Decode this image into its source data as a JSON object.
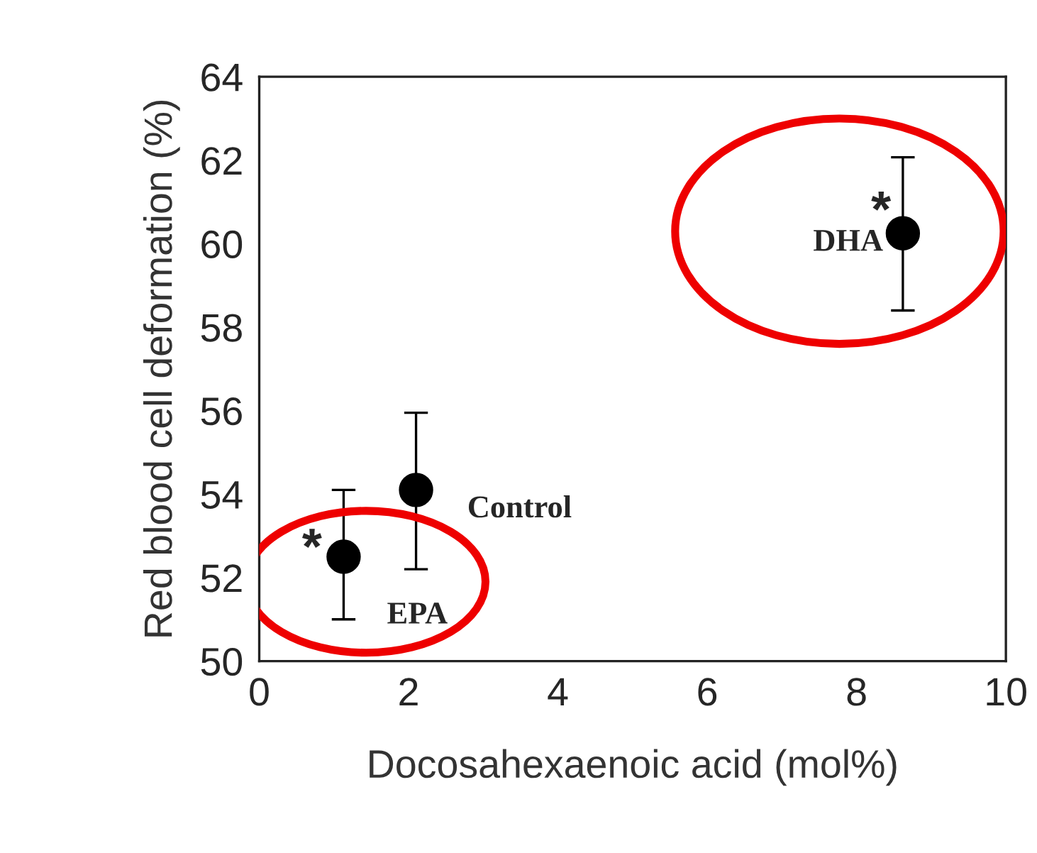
{
  "chart_data": {
    "type": "scatter",
    "xlabel": "Docosahexaenoic acid (mol%)",
    "ylabel": "Red blood cell deformation (%)",
    "x": [
      1.13,
      2.1,
      8.62
    ],
    "values": [
      52.5,
      54.1,
      60.25
    ],
    "errors": [
      [
        51.0,
        54.1
      ],
      [
        52.2,
        55.95
      ],
      [
        58.4,
        62.07
      ]
    ],
    "color": "#000000",
    "marker": "circle",
    "xlim": [
      0,
      10
    ],
    "ylim": [
      50,
      64
    ],
    "xticks": [
      0,
      2,
      4,
      6,
      8,
      10
    ],
    "yticks": [
      50,
      52,
      54,
      56,
      58,
      60,
      62,
      64
    ],
    "annotations": [
      {
        "text": "EPA",
        "x": 1.13,
        "y": 52.5
      },
      {
        "text": "*",
        "x": 1.13,
        "y": 52.5
      },
      {
        "text": "Control",
        "x": 2.1,
        "y": 54.1
      },
      {
        "text": "DHA",
        "x": 8.62,
        "y": 60.25
      },
      {
        "text": "*",
        "x": 8.62,
        "y": 60.25
      }
    ]
  }
}
